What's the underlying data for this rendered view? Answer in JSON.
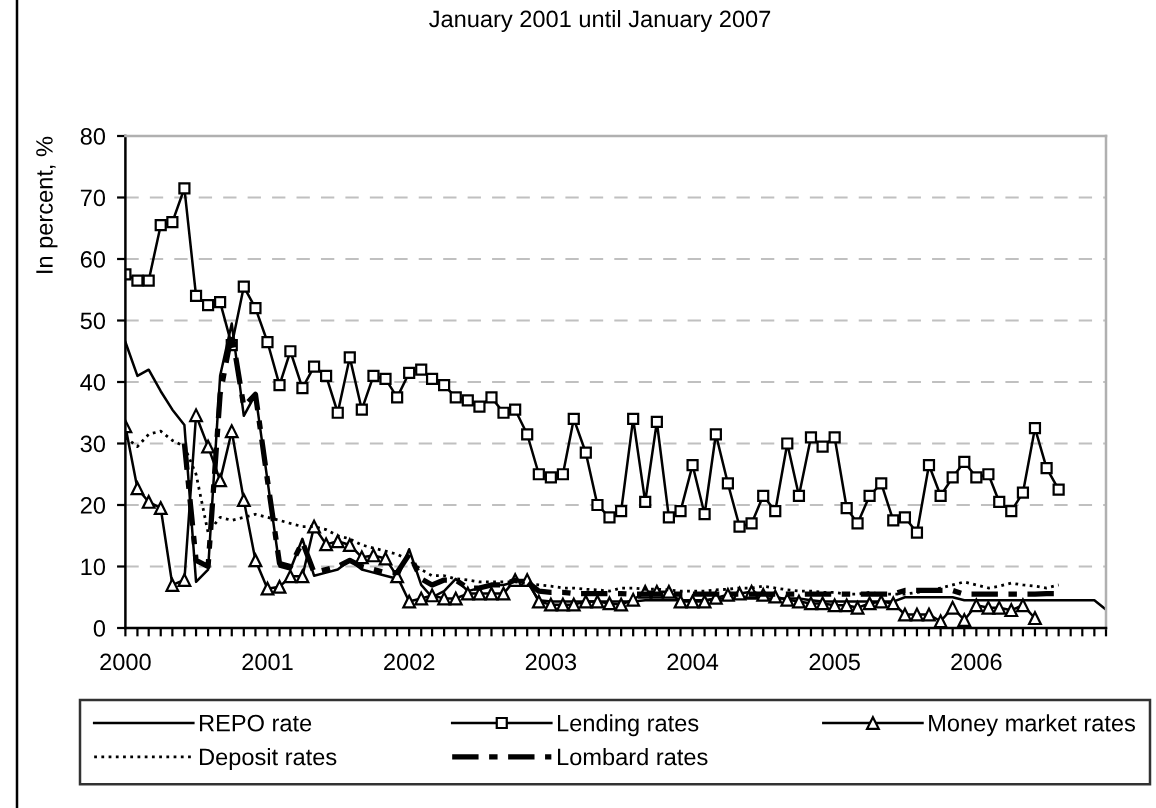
{
  "chart_data": {
    "type": "line",
    "title": "January 2001 until January 2007",
    "ylabel": "In percent, %",
    "x": [
      "2000-01",
      "2000-02",
      "2000-03",
      "2000-04",
      "2000-05",
      "2000-06",
      "2000-07",
      "2000-08",
      "2000-09",
      "2000-10",
      "2000-11",
      "2000-12",
      "2001-01",
      "2001-02",
      "2001-03",
      "2001-04",
      "2001-05",
      "2001-06",
      "2001-07",
      "2001-08",
      "2001-09",
      "2001-10",
      "2001-11",
      "2001-12",
      "2002-01",
      "2002-02",
      "2002-03",
      "2002-04",
      "2002-05",
      "2002-06",
      "2002-07",
      "2002-08",
      "2002-09",
      "2002-10",
      "2002-11",
      "2002-12",
      "2003-01",
      "2003-02",
      "2003-03",
      "2003-04",
      "2003-05",
      "2003-06",
      "2003-07",
      "2003-08",
      "2003-09",
      "2003-10",
      "2003-11",
      "2003-12",
      "2004-01",
      "2004-02",
      "2004-03",
      "2004-04",
      "2004-05",
      "2004-06",
      "2004-07",
      "2004-08",
      "2004-09",
      "2004-10",
      "2004-11",
      "2004-12",
      "2005-01",
      "2005-02",
      "2005-03",
      "2005-04",
      "2005-05",
      "2005-06",
      "2005-07",
      "2005-08",
      "2005-09",
      "2005-10",
      "2005-11",
      "2005-12",
      "2006-01",
      "2006-02",
      "2006-03",
      "2006-04",
      "2006-05",
      "2006-06",
      "2006-07",
      "2006-08",
      "2006-09",
      "2006-10",
      "2006-11",
      "2006-12"
    ],
    "series": [
      {
        "name": "REPO rate",
        "color": "#000000",
        "line_style": "solid",
        "marker": "none",
        "values": [
          46.5,
          41,
          42,
          38.5,
          35.5,
          33,
          7.5,
          9.5,
          41,
          49.5,
          34.5,
          38,
          24,
          10,
          9.5,
          14.5,
          8.5,
          9,
          9.5,
          11,
          9.5,
          9,
          8.5,
          8,
          12.8,
          7,
          5,
          6,
          8,
          6,
          6.5,
          7,
          7,
          7.5,
          7.5,
          4.5,
          4.3,
          4.3,
          4.3,
          4.3,
          4.3,
          4.3,
          4.3,
          4.3,
          4.5,
          4.5,
          4.5,
          4.5,
          4.5,
          4.5,
          4.8,
          4.8,
          4.8,
          4.8,
          4.8,
          4.8,
          4.8,
          4.8,
          4.5,
          4.3,
          4.3,
          4.3,
          4.3,
          4.3,
          4.3,
          4.3,
          5,
          5,
          5,
          5,
          5,
          4.5,
          4.5,
          4.5,
          4.5,
          4.5,
          4.5,
          4.5,
          4.5,
          4.5,
          4.5,
          4.5,
          4.5,
          3
        ]
      },
      {
        "name": "Lending rates",
        "color": "#000000",
        "line_style": "solid",
        "marker": "square",
        "values": [
          57.5,
          56.5,
          56.5,
          65.5,
          66,
          71.5,
          54,
          52.5,
          53,
          46,
          55.5,
          52,
          46.5,
          39.5,
          45,
          39,
          42.5,
          41,
          35,
          44,
          35.5,
          41,
          40.5,
          37.5,
          41.5,
          42,
          40.5,
          39.5,
          37.5,
          37,
          36,
          37.5,
          35,
          35.5,
          31.5,
          25,
          24.5,
          25,
          34,
          28.5,
          20,
          18,
          19,
          34,
          20.5,
          33.5,
          18,
          19,
          26.5,
          18.5,
          31.5,
          23.5,
          16.5,
          17,
          21.5,
          19,
          30,
          21.5,
          31,
          29.5,
          31,
          19.5,
          17,
          21.5,
          23.5,
          17.5,
          18,
          15.5,
          26.5,
          21.5,
          24.5,
          27,
          24.5,
          25,
          20.5,
          19,
          22,
          32.5,
          26,
          22.5,
          null,
          null,
          null,
          null
        ]
      },
      {
        "name": "Money market rates",
        "color": "#000000",
        "line_style": "solid",
        "marker": "triangle",
        "values": [
          32.8,
          22.7,
          20.5,
          19.5,
          7,
          7.8,
          34.6,
          29.5,
          24,
          32,
          20.8,
          11,
          6.4,
          6.7,
          8.4,
          8.4,
          16.5,
          13.6,
          14.1,
          13.5,
          11.5,
          11.8,
          11.3,
          8.4,
          4.3,
          4.8,
          5.3,
          4.8,
          4.8,
          5.6,
          5.6,
          5.6,
          5.6,
          7.8,
          7.8,
          4.3,
          3.8,
          3.8,
          3.8,
          4.3,
          4.3,
          4,
          3.8,
          4.6,
          5.9,
          5.9,
          5.9,
          4.3,
          4.3,
          4.3,
          4.9,
          5.4,
          5.6,
          5.9,
          5.4,
          5.1,
          4.6,
          4.3,
          4,
          4,
          3.7,
          3.7,
          3.3,
          4,
          4.3,
          4,
          2.2,
          2.2,
          2.2,
          1.1,
          3.3,
          1.3,
          3.7,
          3.3,
          3.3,
          2.9,
          3.7,
          1.6,
          null,
          null,
          null,
          null,
          null,
          null
        ]
      },
      {
        "name": "Deposit rates",
        "color": "#000000",
        "line_style": "dotted",
        "marker": "none",
        "values": [
          31,
          29.5,
          31.5,
          32,
          30.5,
          29.5,
          25,
          15.5,
          18,
          17.5,
          18,
          18.5,
          18,
          17.5,
          17,
          16.5,
          16.5,
          16,
          15,
          14.5,
          13.5,
          13,
          12.5,
          12,
          11,
          9.5,
          8.5,
          8.5,
          8,
          7.8,
          7.5,
          7.5,
          7.5,
          7.5,
          7.2,
          7,
          6.8,
          6.5,
          6.5,
          6.3,
          6.2,
          6,
          6.5,
          6.5,
          6.3,
          6.3,
          6.2,
          6,
          6,
          6,
          6.2,
          6.3,
          6.5,
          6.5,
          6.8,
          6.5,
          6.2,
          6,
          6,
          5.8,
          5.8,
          5.5,
          5.5,
          5.8,
          5.5,
          5.5,
          5.5,
          5.8,
          6,
          6.5,
          7,
          7.5,
          7,
          6.5,
          6.8,
          7.3,
          7,
          6.8,
          6.5,
          7,
          null,
          null,
          null,
          null
        ]
      },
      {
        "name": "Lombard rates",
        "color": "#000000",
        "line_style": "dashdot",
        "marker": "none",
        "values": [
          null,
          null,
          null,
          null,
          null,
          30,
          11,
          10,
          38,
          48,
          36,
          38,
          24,
          10.5,
          10,
          14,
          9,
          9.5,
          10,
          11,
          10,
          9.5,
          9,
          9,
          12,
          8,
          7,
          7.8,
          7.8,
          6.5,
          6.5,
          7,
          7,
          7.8,
          7.5,
          6,
          5.8,
          5.8,
          5.6,
          5.6,
          5.6,
          5.6,
          5.6,
          5.5,
          5.5,
          5.5,
          5.5,
          5.5,
          5.5,
          5.5,
          5.5,
          5.5,
          5.5,
          5.5,
          5.5,
          5.5,
          5.5,
          5.5,
          5.5,
          5.5,
          5.5,
          5.5,
          5.5,
          5.5,
          5.5,
          5.5,
          6.1,
          6.1,
          6.1,
          6.1,
          6.1,
          5.5,
          5.5,
          5.5,
          5.5,
          5.5,
          5.5,
          5.5,
          5.6,
          5.6,
          null,
          null,
          null,
          null
        ]
      }
    ],
    "xlim": [
      "2000-01",
      "2006-12"
    ],
    "xticks": [
      {
        "value": "2000-01",
        "label": "2000"
      },
      {
        "value": "2000-02",
        "label": null
      },
      {
        "value": "2000-03",
        "label": null
      },
      {
        "value": "2000-04",
        "label": null
      },
      {
        "value": "2000-05",
        "label": null
      },
      {
        "value": "2000-06",
        "label": null
      },
      {
        "value": "2000-07",
        "label": null
      },
      {
        "value": "2000-08",
        "label": null
      },
      {
        "value": "2000-09",
        "label": null
      },
      {
        "value": "2000-10",
        "label": null
      },
      {
        "value": "2000-11",
        "label": null
      },
      {
        "value": "2000-12",
        "label": null
      },
      {
        "value": "2001-01",
        "label": "2001"
      },
      {
        "value": "2001-02",
        "label": null
      },
      {
        "value": "2001-03",
        "label": null
      },
      {
        "value": "2001-04",
        "label": null
      },
      {
        "value": "2001-05",
        "label": null
      },
      {
        "value": "2001-06",
        "label": null
      },
      {
        "value": "2001-07",
        "label": null
      },
      {
        "value": "2001-08",
        "label": null
      },
      {
        "value": "2001-09",
        "label": null
      },
      {
        "value": "2001-10",
        "label": null
      },
      {
        "value": "2001-11",
        "label": null
      },
      {
        "value": "2001-12",
        "label": null
      },
      {
        "value": "2002-01",
        "label": "2002"
      },
      {
        "value": "2002-02",
        "label": null
      },
      {
        "value": "2002-03",
        "label": null
      },
      {
        "value": "2002-04",
        "label": null
      },
      {
        "value": "2002-05",
        "label": null
      },
      {
        "value": "2002-06",
        "label": null
      },
      {
        "value": "2002-07",
        "label": null
      },
      {
        "value": "2002-08",
        "label": null
      },
      {
        "value": "2002-09",
        "label": null
      },
      {
        "value": "2002-10",
        "label": null
      },
      {
        "value": "2002-11",
        "label": null
      },
      {
        "value": "2002-12",
        "label": null
      },
      {
        "value": "2003-01",
        "label": "2003"
      },
      {
        "value": "2003-02",
        "label": null
      },
      {
        "value": "2003-03",
        "label": null
      },
      {
        "value": "2003-04",
        "label": null
      },
      {
        "value": "2003-05",
        "label": null
      },
      {
        "value": "2003-06",
        "label": null
      },
      {
        "value": "2003-07",
        "label": null
      },
      {
        "value": "2003-08",
        "label": null
      },
      {
        "value": "2003-09",
        "label": null
      },
      {
        "value": "2003-10",
        "label": null
      },
      {
        "value": "2003-11",
        "label": null
      },
      {
        "value": "2003-12",
        "label": null
      },
      {
        "value": "2004-01",
        "label": "2004"
      },
      {
        "value": "2004-02",
        "label": null
      },
      {
        "value": "2004-03",
        "label": null
      },
      {
        "value": "2004-04",
        "label": null
      },
      {
        "value": "2004-05",
        "label": null
      },
      {
        "value": "2004-06",
        "label": null
      },
      {
        "value": "2004-07",
        "label": null
      },
      {
        "value": "2004-08",
        "label": null
      },
      {
        "value": "2004-09",
        "label": null
      },
      {
        "value": "2004-10",
        "label": null
      },
      {
        "value": "2004-11",
        "label": null
      },
      {
        "value": "2004-12",
        "label": null
      },
      {
        "value": "2005-01",
        "label": "2005"
      },
      {
        "value": "2005-02",
        "label": null
      },
      {
        "value": "2005-03",
        "label": null
      },
      {
        "value": "2005-04",
        "label": null
      },
      {
        "value": "2005-05",
        "label": null
      },
      {
        "value": "2005-06",
        "label": null
      },
      {
        "value": "2005-07",
        "label": null
      },
      {
        "value": "2005-08",
        "label": null
      },
      {
        "value": "2005-09",
        "label": null
      },
      {
        "value": "2005-10",
        "label": null
      },
      {
        "value": "2005-11",
        "label": null
      },
      {
        "value": "2005-12",
        "label": null
      },
      {
        "value": "2006-01",
        "label": "2006"
      },
      {
        "value": "2006-02",
        "label": null
      },
      {
        "value": "2006-03",
        "label": null
      },
      {
        "value": "2006-04",
        "label": null
      },
      {
        "value": "2006-05",
        "label": null
      },
      {
        "value": "2006-06",
        "label": null
      },
      {
        "value": "2006-07",
        "label": null
      },
      {
        "value": "2006-08",
        "label": null
      },
      {
        "value": "2006-09",
        "label": null
      },
      {
        "value": "2006-10",
        "label": null
      },
      {
        "value": "2006-11",
        "label": null
      },
      {
        "value": "2006-12",
        "label": null
      }
    ],
    "ylim": [
      0,
      80
    ],
    "yticks": [
      0,
      10,
      20,
      30,
      40,
      50,
      60,
      70,
      80
    ],
    "grid": "y",
    "legend": "bottom"
  }
}
